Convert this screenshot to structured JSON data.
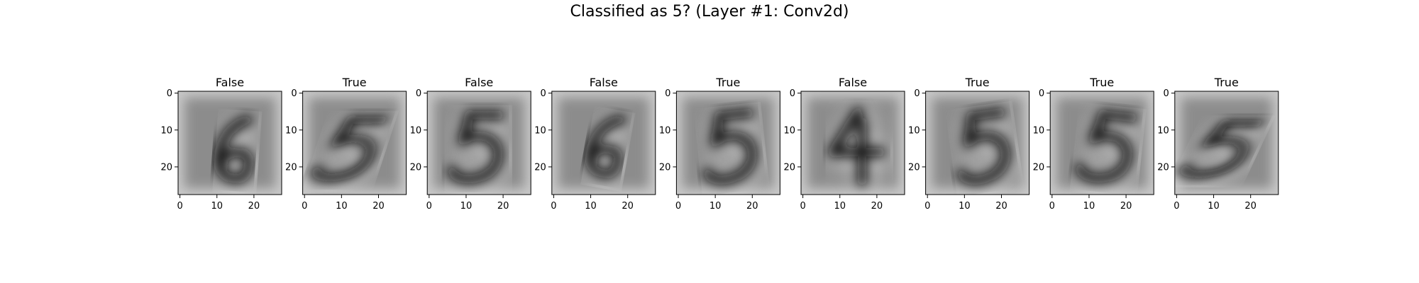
{
  "figure": {
    "title": "Classified as 5? (Layer #1: Conv2d)"
  },
  "colors": {
    "background": "#ffffff",
    "axis": "#000000",
    "image_mid_gray": "#8c8c8c",
    "stroke_dark": "#111111",
    "halo_light": "#dcdcdc"
  },
  "chart_data": {
    "type": "heatmap",
    "colormap": "gray",
    "image_size": [
      28,
      28
    ],
    "xlim": [
      -0.5,
      27.5
    ],
    "ylim": [
      27.5,
      -0.5
    ],
    "xticks": [
      0,
      10,
      20
    ],
    "yticks": [
      0,
      10,
      20
    ],
    "xtick_labels": [
      "0",
      "10",
      "20"
    ],
    "ytick_labels": [
      "0",
      "10",
      "20"
    ],
    "panels": [
      {
        "title": "False",
        "digit": "6"
      },
      {
        "title": "True",
        "digit": "5"
      },
      {
        "title": "False",
        "digit": "5"
      },
      {
        "title": "False",
        "digit": "6"
      },
      {
        "title": "True",
        "digit": "5"
      },
      {
        "title": "False",
        "digit": "4"
      },
      {
        "title": "True",
        "digit": "5"
      },
      {
        "title": "True",
        "digit": "5"
      },
      {
        "title": "True",
        "digit": "5"
      }
    ]
  }
}
